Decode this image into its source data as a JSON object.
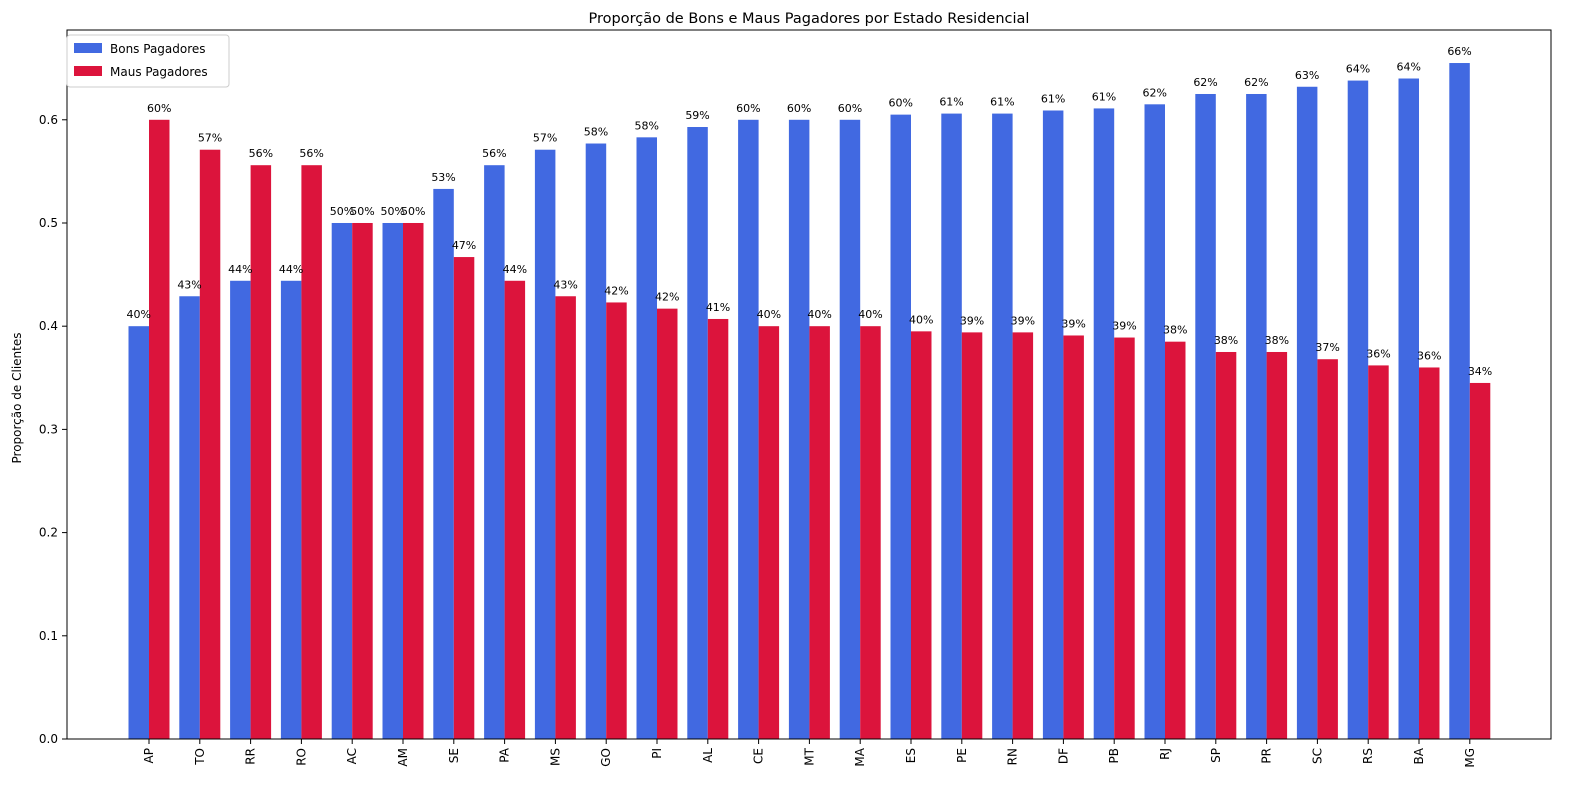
{
  "chart_data": {
    "type": "bar",
    "title": "Proporção de Bons e Maus Pagadores por Estado Residencial",
    "xlabel": "",
    "ylabel": "Proporção de Clientes",
    "ylim": [
      0,
      0.687
    ],
    "yticks": [
      0.0,
      0.1,
      0.2,
      0.3,
      0.4,
      0.5,
      0.6
    ],
    "ytick_labels": [
      "0.0",
      "0.1",
      "0.2",
      "0.3",
      "0.4",
      "0.5",
      "0.6"
    ],
    "grid": false,
    "legend_position": "top-left",
    "categories": [
      "AP",
      "TO",
      "RR",
      "RO",
      "AC",
      "AM",
      "SE",
      "PA",
      "MS",
      "GO",
      "PI",
      "AL",
      "CE",
      "MT",
      "MA",
      "ES",
      "PE",
      "RN",
      "DF",
      "PB",
      "RJ",
      "SP",
      "PR",
      "SC",
      "RS",
      "BA",
      "MG"
    ],
    "series": [
      {
        "name": "Bons Pagadores",
        "color": "#4169e1",
        "values": [
          0.4,
          0.429,
          0.444,
          0.444,
          0.5,
          0.5,
          0.533,
          0.556,
          0.571,
          0.577,
          0.583,
          0.593,
          0.6,
          0.6,
          0.6,
          0.605,
          0.606,
          0.606,
          0.609,
          0.611,
          0.615,
          0.625,
          0.625,
          0.632,
          0.638,
          0.64,
          0.655
        ],
        "labels": [
          "40%",
          "43%",
          "44%",
          "44%",
          "50%",
          "50%",
          "53%",
          "56%",
          "57%",
          "58%",
          "58%",
          "59%",
          "60%",
          "60%",
          "60%",
          "60%",
          "61%",
          "61%",
          "61%",
          "61%",
          "62%",
          "62%",
          "62%",
          "63%",
          "64%",
          "64%",
          "66%"
        ]
      },
      {
        "name": "Maus Pagadores",
        "color": "#dc143c",
        "values": [
          0.6,
          0.571,
          0.556,
          0.556,
          0.5,
          0.5,
          0.467,
          0.444,
          0.429,
          0.423,
          0.417,
          0.407,
          0.4,
          0.4,
          0.4,
          0.395,
          0.394,
          0.394,
          0.391,
          0.389,
          0.385,
          0.375,
          0.375,
          0.368,
          0.362,
          0.36,
          0.345
        ],
        "labels": [
          "60%",
          "57%",
          "56%",
          "56%",
          "50%",
          "50%",
          "47%",
          "44%",
          "43%",
          "42%",
          "42%",
          "41%",
          "40%",
          "40%",
          "40%",
          "40%",
          "39%",
          "39%",
          "39%",
          "39%",
          "38%",
          "38%",
          "38%",
          "37%",
          "36%",
          "36%",
          "34%"
        ]
      }
    ]
  }
}
